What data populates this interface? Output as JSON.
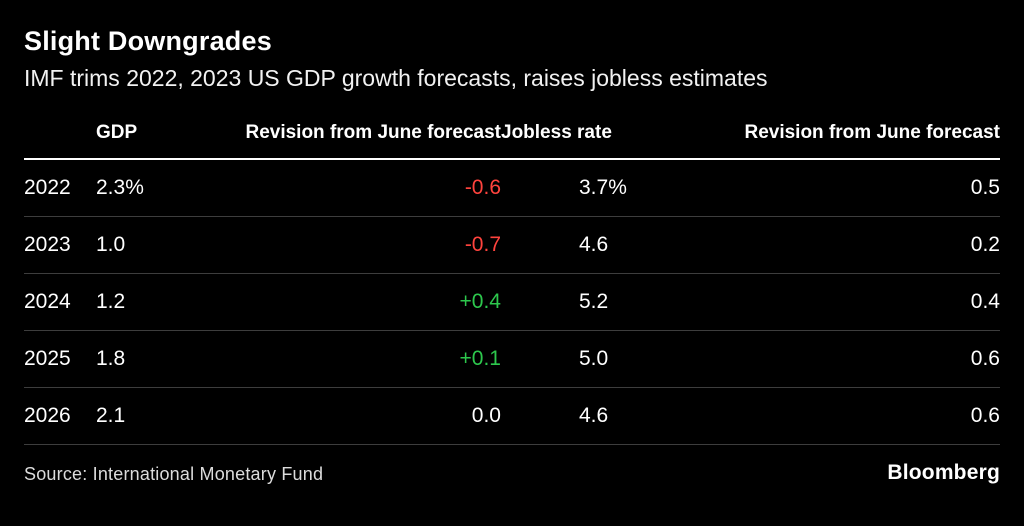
{
  "title": "Slight Downgrades",
  "subtitle": "IMF trims 2022, 2023 US GDP growth forecasts, raises jobless estimates",
  "source": "Source: International Monetary Fund",
  "brand": "Bloomberg",
  "colors": {
    "background": "#000000",
    "text": "#ffffff",
    "negative": "#ff433d",
    "positive": "#2dc84d",
    "separator": "#3d3d3d"
  },
  "chart_data": {
    "type": "table",
    "title": "Slight Downgrades",
    "subtitle": "IMF trims 2022, 2023 US GDP growth forecasts, raises jobless estimates",
    "columns": [
      "",
      "GDP",
      "Revision from June forecast",
      "Jobless rate",
      "Revision from June forecast"
    ],
    "rows": [
      {
        "year": "2022",
        "gdp": "2.3%",
        "gdp_revision": "-0.6",
        "jobless_rate": "3.7%",
        "jobless_revision": "0.5"
      },
      {
        "year": "2023",
        "gdp": "1.0",
        "gdp_revision": "-0.7",
        "jobless_rate": "4.6",
        "jobless_revision": "0.2"
      },
      {
        "year": "2024",
        "gdp": "1.2",
        "gdp_revision": "+0.4",
        "jobless_rate": "5.2",
        "jobless_revision": "0.4"
      },
      {
        "year": "2025",
        "gdp": "1.8",
        "gdp_revision": "+0.1",
        "jobless_rate": "5.0",
        "jobless_revision": "0.6"
      },
      {
        "year": "2026",
        "gdp": "2.1",
        "gdp_revision": "0.0",
        "jobless_rate": "4.6",
        "jobless_revision": "0.6"
      }
    ],
    "source": "Source: International Monetary Fund"
  }
}
